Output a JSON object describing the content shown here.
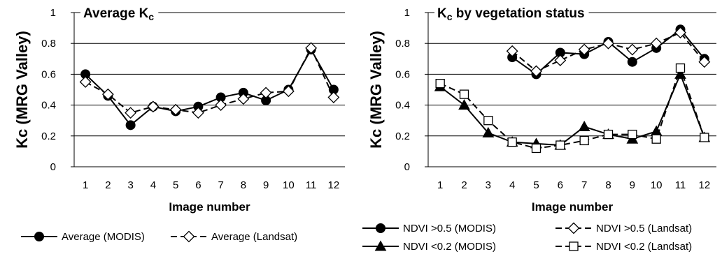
{
  "chart_data": [
    {
      "type": "line",
      "title": "Average K",
      "title_subscript": "c",
      "xlabel": "Image number",
      "ylabel": "Kc (MRG Valley)",
      "categories": [
        "1",
        "2",
        "3",
        "4",
        "5",
        "6",
        "7",
        "8",
        "9",
        "10",
        "11",
        "12"
      ],
      "y_ticks": [
        "0",
        "0.2",
        "0.4",
        "0.6",
        "0.8",
        "1"
      ],
      "ylim": [
        0,
        1
      ],
      "grid": true,
      "legend_position": "bottom",
      "series": [
        {
          "name": "Average (MODIS)",
          "marker": "filled-circle",
          "line": "solid",
          "values": [
            0.6,
            0.46,
            0.27,
            0.39,
            0.36,
            0.39,
            0.45,
            0.48,
            0.43,
            0.5,
            0.76,
            0.5
          ]
        },
        {
          "name": "Average (Landsat)",
          "marker": "open-diamond",
          "line": "dashed",
          "values": [
            0.55,
            0.47,
            0.35,
            0.39,
            0.37,
            0.35,
            0.4,
            0.44,
            0.48,
            0.49,
            0.77,
            0.45
          ]
        }
      ]
    },
    {
      "type": "line",
      "title": "K",
      "title_subscript": "c",
      "title_suffix": " by vegetation status",
      "xlabel": "Image number",
      "ylabel": "Kc (MRG Valley)",
      "categories": [
        "1",
        "2",
        "3",
        "4",
        "5",
        "6",
        "7",
        "8",
        "9",
        "10",
        "11",
        "12"
      ],
      "y_ticks": [
        "0",
        "0.2",
        "0.4",
        "0.6",
        "0.8",
        "1"
      ],
      "ylim": [
        0,
        1
      ],
      "grid": true,
      "legend_position": "bottom",
      "series": [
        {
          "name": "NDVI >0.5 (MODIS)",
          "marker": "filled-circle",
          "line": "solid",
          "values": [
            null,
            null,
            null,
            0.71,
            0.6,
            0.74,
            0.73,
            0.81,
            0.68,
            0.77,
            0.89,
            0.7
          ]
        },
        {
          "name": "NDVI >0.5 (Landsat)",
          "marker": "open-diamond",
          "line": "dashed",
          "values": [
            null,
            null,
            null,
            0.75,
            0.62,
            0.69,
            0.76,
            0.8,
            0.76,
            0.8,
            0.87,
            0.68
          ]
        },
        {
          "name": "NDVI <0.2 (MODIS)",
          "marker": "filled-triangle",
          "line": "solid",
          "values": [
            0.52,
            0.4,
            0.22,
            0.16,
            0.15,
            0.14,
            0.26,
            0.21,
            0.18,
            0.23,
            0.6,
            0.19
          ]
        },
        {
          "name": "NDVI <0.2 (Landsat)",
          "marker": "open-square",
          "line": "dashed",
          "values": [
            0.54,
            0.47,
            0.3,
            0.16,
            0.12,
            0.14,
            0.17,
            0.21,
            0.21,
            0.18,
            0.64,
            0.19
          ]
        }
      ]
    }
  ]
}
